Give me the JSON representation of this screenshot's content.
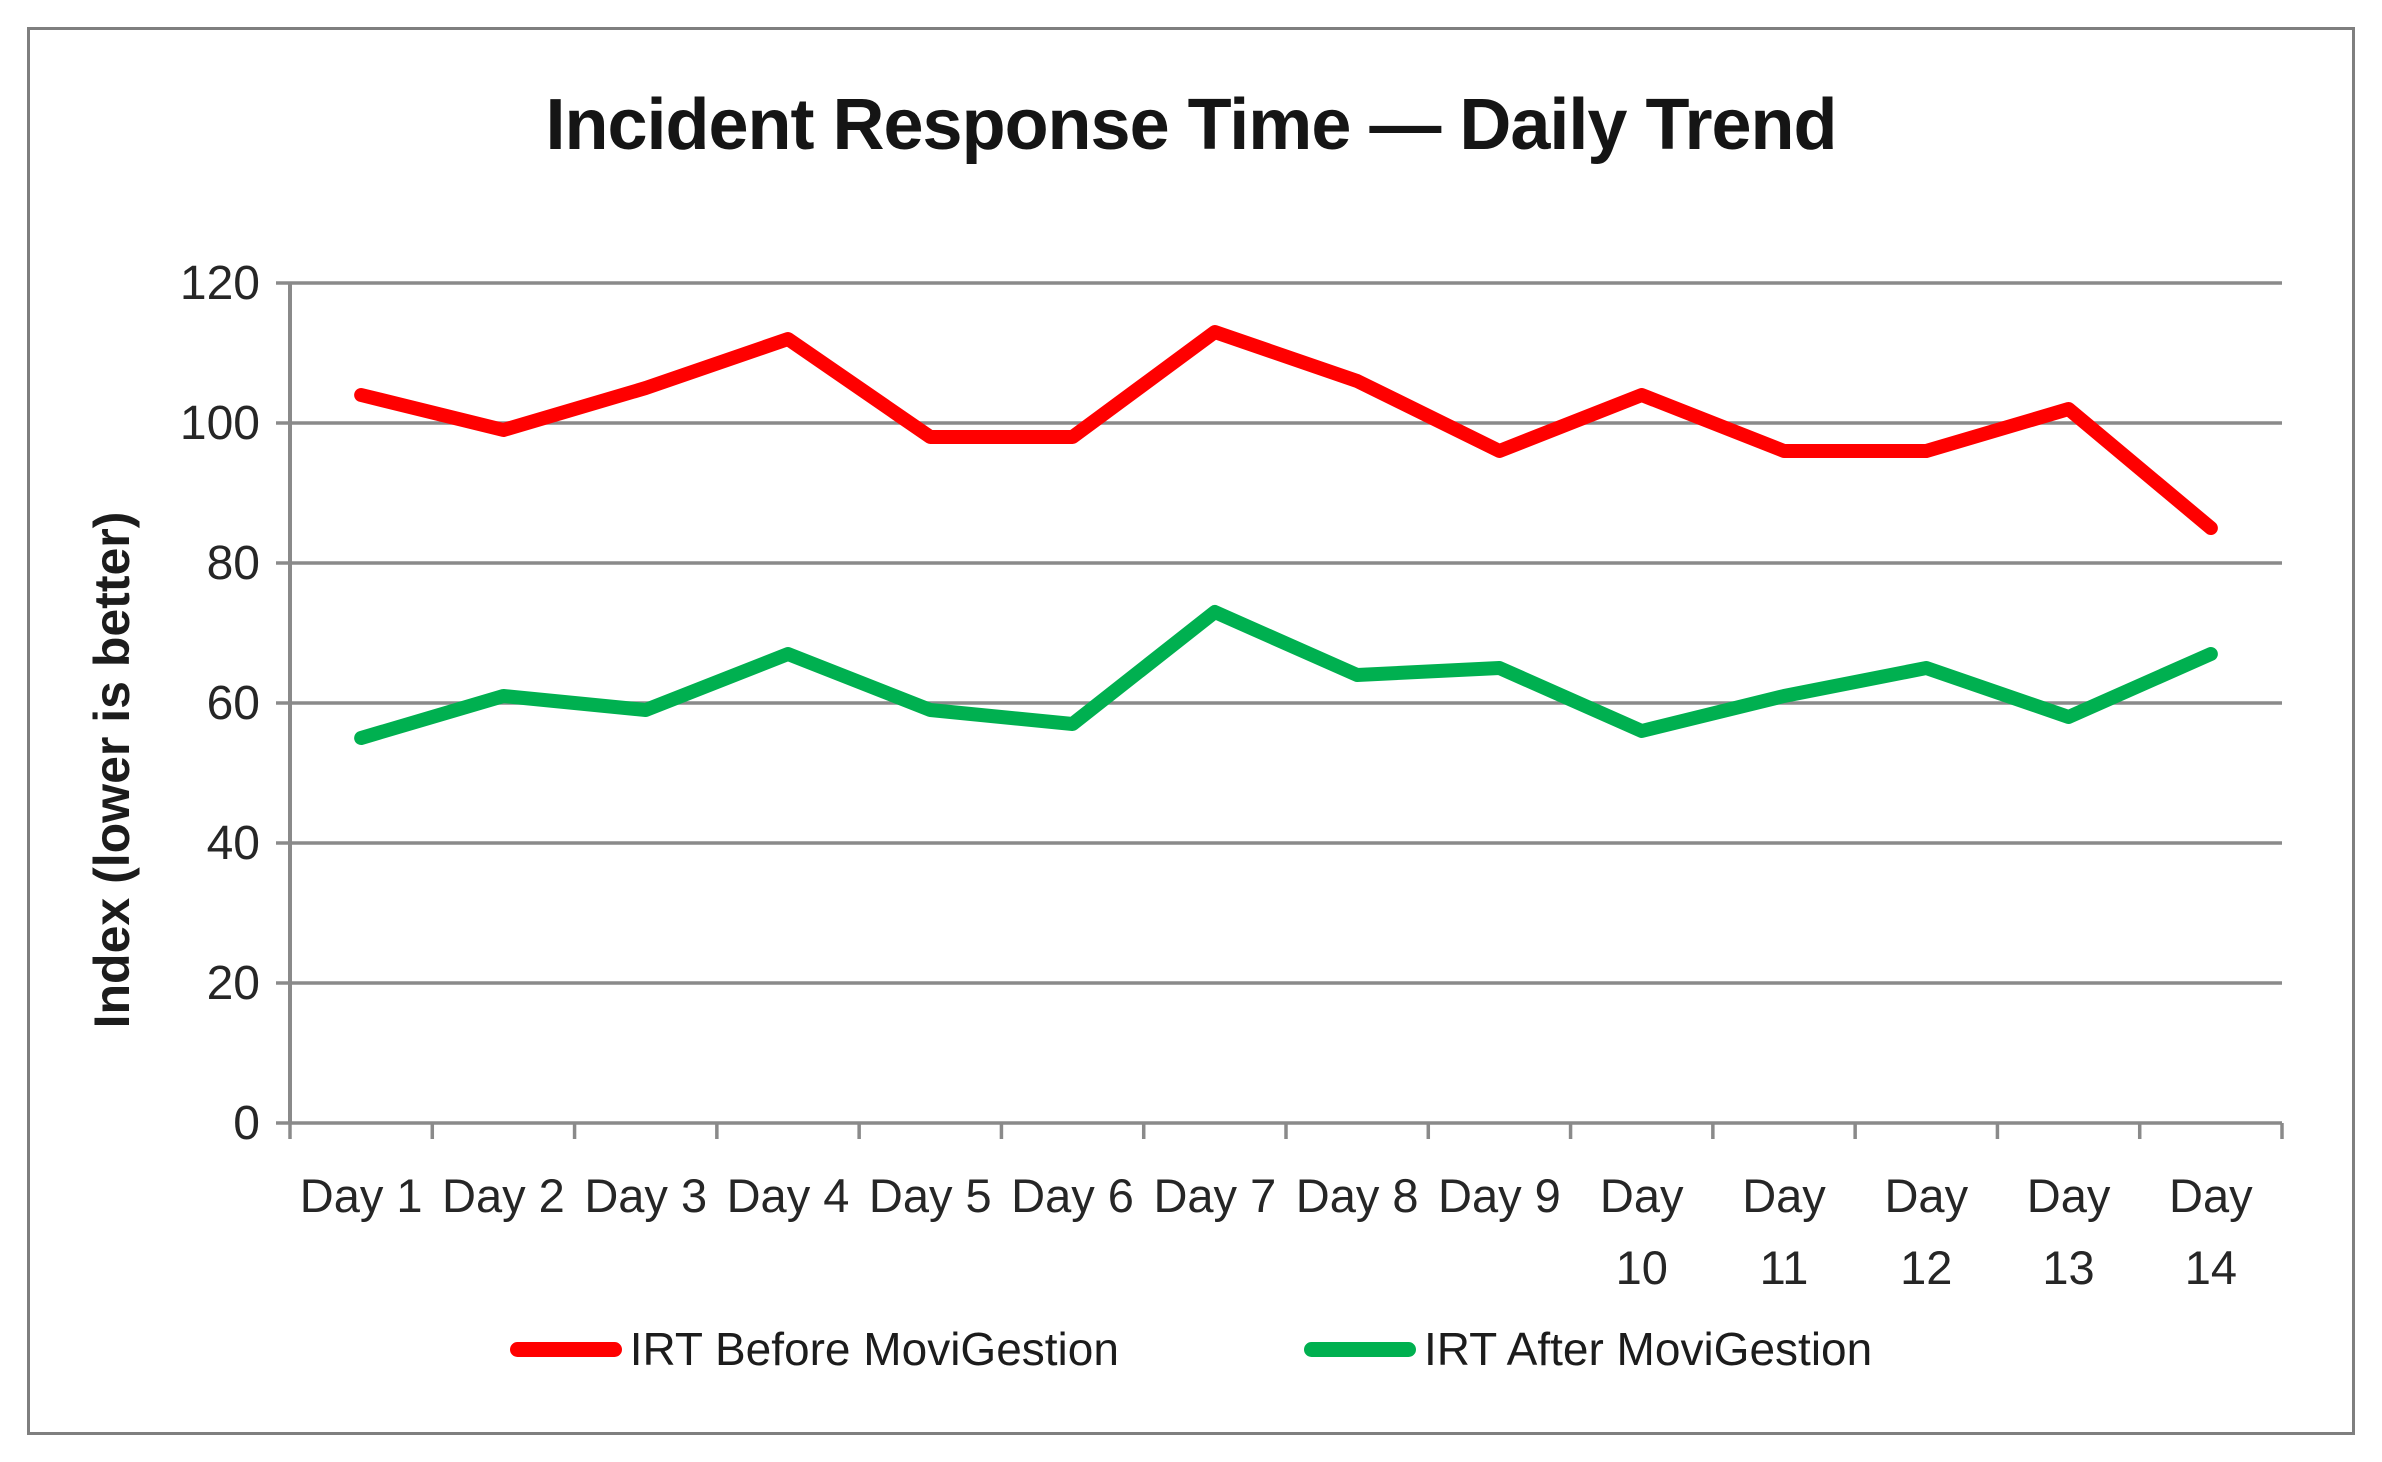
{
  "title": "Incident Response Time — Daily Trend",
  "y_axis": {
    "title": "Index (lower is better)"
  },
  "x_axis": {
    "tick_prefix": "Day"
  },
  "legend": {
    "position": "bottom"
  },
  "colors": {
    "before_series": "#ff0000",
    "after_series": "#00b050",
    "gridline": "#8a8a8a",
    "border": "#7f7f7f",
    "text": "#262626",
    "background": "#ffffff"
  },
  "chart_data": {
    "type": "line",
    "title": "Incident Response Time — Daily Trend",
    "xlabel": "",
    "ylabel": "Index (lower is better)",
    "categories": [
      "Day 1",
      "Day 2",
      "Day 3",
      "Day 4",
      "Day 5",
      "Day 6",
      "Day 7",
      "Day 8",
      "Day 9",
      "Day 10",
      "Day 11",
      "Day 12",
      "Day 13",
      "Day 14"
    ],
    "series": [
      {
        "name": "IRT Before MoviGestion",
        "color": "#ff0000",
        "values": [
          104,
          99,
          105,
          112,
          98,
          98,
          113,
          106,
          96,
          104,
          96,
          96,
          102,
          85
        ]
      },
      {
        "name": "IRT After MoviGestion",
        "color": "#00b050",
        "values": [
          55,
          61,
          59,
          67,
          59,
          57,
          73,
          64,
          65,
          56,
          61,
          65,
          58,
          67
        ]
      }
    ],
    "ylim": [
      0,
      120
    ],
    "ytick_step": 20,
    "yticks": [
      0,
      20,
      40,
      60,
      80,
      100,
      120
    ],
    "grid": true,
    "legend_position": "bottom"
  }
}
